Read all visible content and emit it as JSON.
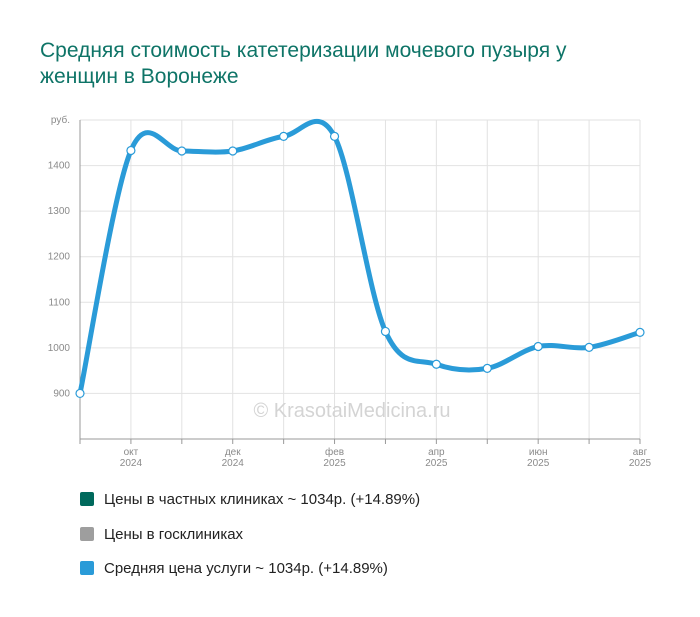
{
  "chart_data": {
    "type": "line",
    "title": "Средняя стоимость катетеризации мочевого пузыря у женщин в Воронеже",
    "watermark": "© KrasotaiMedicina.ru",
    "categories": [
      null,
      "окт 2024",
      null,
      "дек 2024",
      null,
      "фев 2025",
      null,
      "апр 2025",
      null,
      "июн 2025",
      null,
      "авг 2025"
    ],
    "series": [
      {
        "name": "Цены в частных клиниках ~ 1034р. (+14.89%)",
        "color": "#00695c"
      },
      {
        "name": "Цены в госклиниках",
        "color": "#9e9e9e"
      },
      {
        "name": "Средняя цена услуги ~ 1034р. (+14.89%)",
        "color": "#2a9bd8",
        "values": [
          900,
          1433,
          1432,
          1432,
          1464,
          1464,
          1036,
          964,
          955,
          1003,
          1001,
          1034
        ]
      }
    ],
    "ylim": [
      800,
      1500
    ],
    "yticks": [
      900,
      1000,
      1100,
      1200,
      1300,
      1400,
      {
        "value": 1500,
        "label": "руб."
      }
    ],
    "grid": true
  }
}
